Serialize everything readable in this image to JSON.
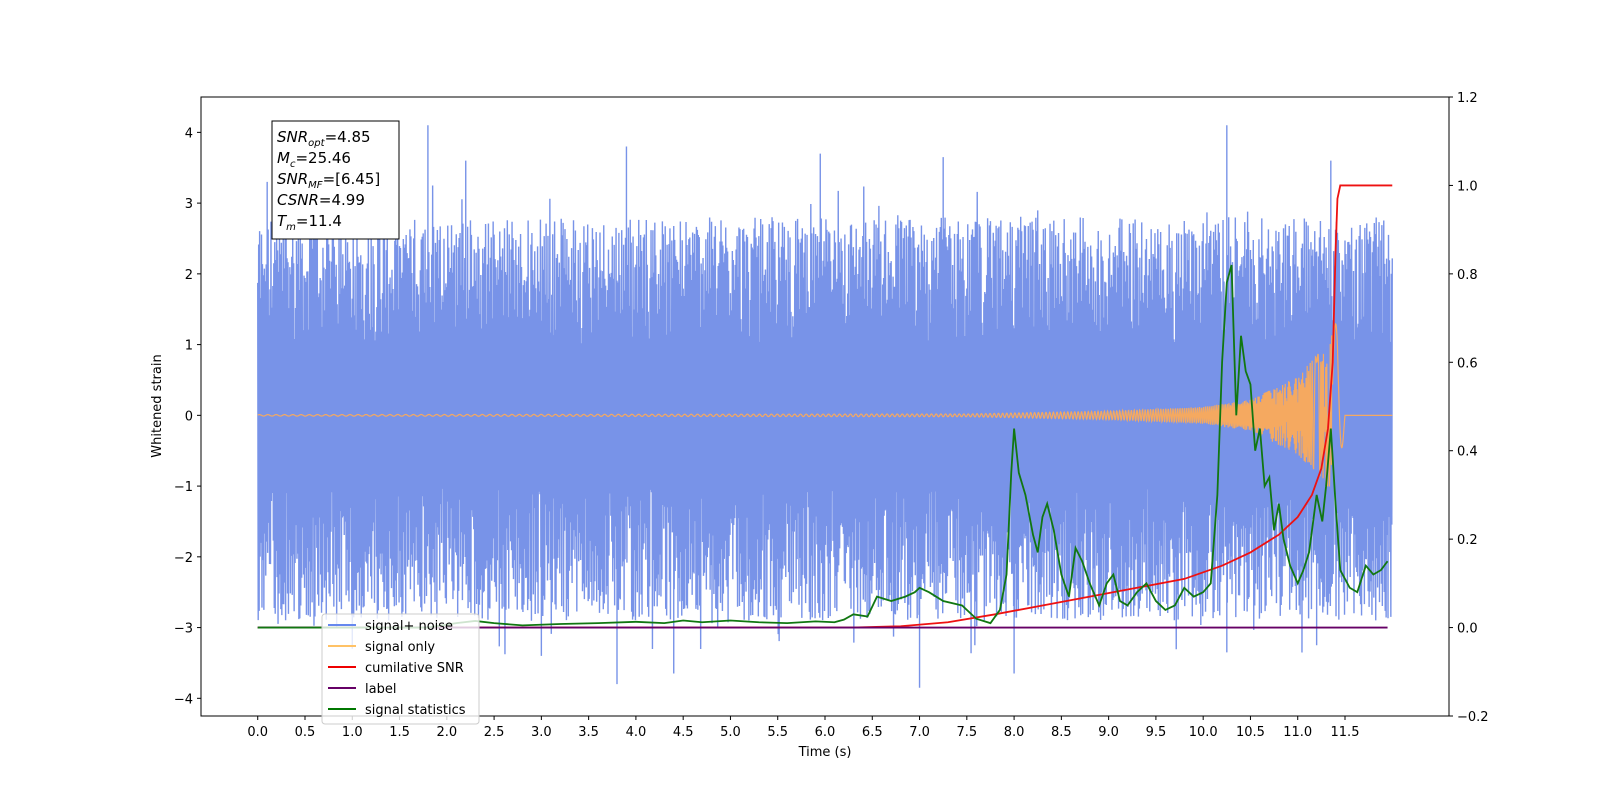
{
  "chart_data": {
    "type": "line",
    "xlabel": "Time (s)",
    "ylabel": "Whitened strain",
    "xlim": [
      -0.6,
      12.6
    ],
    "ylim_left": [
      -4.25,
      4.5
    ],
    "ylim_right": [
      -0.2,
      1.2
    ],
    "x_ticks": [
      "0.0",
      "0.5",
      "1.0",
      "1.5",
      "2.0",
      "2.5",
      "3.0",
      "3.5",
      "4.0",
      "4.5",
      "5.0",
      "5.5",
      "6.0",
      "6.5",
      "7.0",
      "7.5",
      "8.0",
      "8.5",
      "9.0",
      "9.5",
      "10.0",
      "10.5",
      "11.0",
      "11.5"
    ],
    "y_ticks_left": [
      "4",
      "3",
      "2",
      "1",
      "0",
      "−1",
      "−2",
      "−3",
      "−4"
    ],
    "y_ticks_right": [
      "1.2",
      "1.0",
      "0.8",
      "0.6",
      "0.4",
      "0.2",
      "0.0",
      "−0.2"
    ],
    "info_box": [
      {
        "main": "SNR",
        "sub": "opt",
        "value": "=4.85"
      },
      {
        "main": "M",
        "sub": "c",
        "value": "=25.46"
      },
      {
        "main": "SNR",
        "sub": "MF",
        "value": "=[6.45]"
      },
      {
        "main": "CSNR",
        "sub": "",
        "value": "=4.99"
      },
      {
        "main": "T",
        "sub": "m",
        "value": "=11.4"
      }
    ],
    "legend": [
      {
        "label": "signal+ noise",
        "color": "#6688ee"
      },
      {
        "label": "signal only",
        "color": "#ffc266"
      },
      {
        "label": "cumilative SNR",
        "color": "#ee0000"
      },
      {
        "label": "label",
        "color": "#660066"
      },
      {
        "label": "signal statistics",
        "color": "#007700"
      }
    ],
    "series": [
      {
        "name": "signal+ noise",
        "axis": "left",
        "color": "#7893e8",
        "x_range": [
          0.0,
          12.0
        ],
        "spread_low": -2.9,
        "spread_high": 2.8,
        "peaks": [
          [
            1.8,
            4.1
          ],
          [
            10.25,
            4.1
          ],
          [
            2.2,
            3.6
          ],
          [
            3.9,
            3.8
          ],
          [
            5.95,
            3.7
          ],
          [
            11.35,
            3.6
          ],
          [
            0.1,
            3.3
          ],
          [
            7.25,
            3.65
          ],
          [
            1.0,
            -3.3
          ],
          [
            3.0,
            -3.4
          ],
          [
            3.8,
            -3.8
          ],
          [
            4.4,
            -3.65
          ],
          [
            7.0,
            -3.85
          ],
          [
            8.0,
            -3.65
          ],
          [
            10.25,
            -3.35
          ],
          [
            11.2,
            -3.25
          ]
        ]
      },
      {
        "name": "signal only",
        "axis": "left",
        "color": "#f5a960",
        "x_range": [
          0.0,
          12.0
        ],
        "envelope": [
          [
            0.0,
            0.01
          ],
          [
            7.5,
            0.02
          ],
          [
            9.0,
            0.06
          ],
          [
            10.0,
            0.12
          ],
          [
            10.5,
            0.22
          ],
          [
            11.0,
            0.55
          ],
          [
            11.3,
            1.0
          ],
          [
            11.42,
            1.35
          ],
          [
            11.5,
            0.0
          ],
          [
            12.0,
            0.0
          ]
        ]
      },
      {
        "name": "cumilative SNR",
        "axis": "right",
        "color": "#ee1111",
        "points": [
          [
            0.0,
            0.0
          ],
          [
            6.3,
            0.0
          ],
          [
            6.8,
            0.003
          ],
          [
            7.3,
            0.012
          ],
          [
            7.8,
            0.03
          ],
          [
            8.3,
            0.05
          ],
          [
            8.8,
            0.07
          ],
          [
            9.3,
            0.09
          ],
          [
            9.8,
            0.11
          ],
          [
            10.2,
            0.14
          ],
          [
            10.5,
            0.17
          ],
          [
            10.8,
            0.21
          ],
          [
            11.0,
            0.25
          ],
          [
            11.15,
            0.3
          ],
          [
            11.25,
            0.36
          ],
          [
            11.32,
            0.45
          ],
          [
            11.37,
            0.6
          ],
          [
            11.4,
            0.85
          ],
          [
            11.42,
            0.97
          ],
          [
            11.45,
            1.0
          ],
          [
            12.0,
            1.0
          ]
        ]
      },
      {
        "name": "label",
        "axis": "right",
        "color": "#660066",
        "points": [
          [
            0.0,
            0.0
          ],
          [
            11.95,
            0.0
          ]
        ]
      },
      {
        "name": "signal statistics",
        "axis": "right",
        "color": "#117711",
        "points": [
          [
            0.0,
            0.0
          ],
          [
            1.0,
            0.0
          ],
          [
            1.8,
            0.0
          ],
          [
            2.1,
            0.01
          ],
          [
            2.3,
            0.015
          ],
          [
            2.5,
            0.01
          ],
          [
            2.8,
            0.005
          ],
          [
            3.2,
            0.008
          ],
          [
            3.6,
            0.01
          ],
          [
            4.0,
            0.013
          ],
          [
            4.3,
            0.01
          ],
          [
            4.5,
            0.016
          ],
          [
            4.7,
            0.012
          ],
          [
            5.0,
            0.016
          ],
          [
            5.3,
            0.012
          ],
          [
            5.6,
            0.01
          ],
          [
            5.9,
            0.014
          ],
          [
            6.1,
            0.012
          ],
          [
            6.2,
            0.018
          ],
          [
            6.3,
            0.03
          ],
          [
            6.45,
            0.025
          ],
          [
            6.55,
            0.07
          ],
          [
            6.7,
            0.06
          ],
          [
            6.85,
            0.07
          ],
          [
            6.95,
            0.08
          ],
          [
            7.0,
            0.09
          ],
          [
            7.1,
            0.08
          ],
          [
            7.25,
            0.06
          ],
          [
            7.45,
            0.05
          ],
          [
            7.6,
            0.02
          ],
          [
            7.75,
            0.01
          ],
          [
            7.85,
            0.04
          ],
          [
            7.92,
            0.12
          ],
          [
            7.97,
            0.35
          ],
          [
            8.0,
            0.45
          ],
          [
            8.05,
            0.35
          ],
          [
            8.12,
            0.3
          ],
          [
            8.2,
            0.21
          ],
          [
            8.25,
            0.17
          ],
          [
            8.3,
            0.25
          ],
          [
            8.35,
            0.28
          ],
          [
            8.42,
            0.22
          ],
          [
            8.5,
            0.12
          ],
          [
            8.58,
            0.07
          ],
          [
            8.65,
            0.18
          ],
          [
            8.72,
            0.15
          ],
          [
            8.8,
            0.1
          ],
          [
            8.9,
            0.05
          ],
          [
            8.98,
            0.1
          ],
          [
            9.05,
            0.12
          ],
          [
            9.12,
            0.06
          ],
          [
            9.2,
            0.05
          ],
          [
            9.3,
            0.08
          ],
          [
            9.4,
            0.1
          ],
          [
            9.5,
            0.06
          ],
          [
            9.6,
            0.04
          ],
          [
            9.7,
            0.05
          ],
          [
            9.8,
            0.09
          ],
          [
            9.9,
            0.07
          ],
          [
            10.0,
            0.08
          ],
          [
            10.08,
            0.1
          ],
          [
            10.15,
            0.3
          ],
          [
            10.2,
            0.6
          ],
          [
            10.25,
            0.78
          ],
          [
            10.3,
            0.82
          ],
          [
            10.35,
            0.48
          ],
          [
            10.4,
            0.66
          ],
          [
            10.45,
            0.58
          ],
          [
            10.5,
            0.55
          ],
          [
            10.55,
            0.4
          ],
          [
            10.6,
            0.45
          ],
          [
            10.65,
            0.32
          ],
          [
            10.7,
            0.34
          ],
          [
            10.75,
            0.22
          ],
          [
            10.8,
            0.28
          ],
          [
            10.85,
            0.2
          ],
          [
            10.92,
            0.14
          ],
          [
            11.0,
            0.1
          ],
          [
            11.06,
            0.13
          ],
          [
            11.12,
            0.17
          ],
          [
            11.2,
            0.3
          ],
          [
            11.26,
            0.24
          ],
          [
            11.3,
            0.32
          ],
          [
            11.35,
            0.45
          ],
          [
            11.4,
            0.28
          ],
          [
            11.45,
            0.13
          ],
          [
            11.55,
            0.09
          ],
          [
            11.63,
            0.08
          ],
          [
            11.72,
            0.14
          ],
          [
            11.8,
            0.12
          ],
          [
            11.88,
            0.13
          ],
          [
            11.95,
            0.15
          ]
        ]
      }
    ]
  }
}
